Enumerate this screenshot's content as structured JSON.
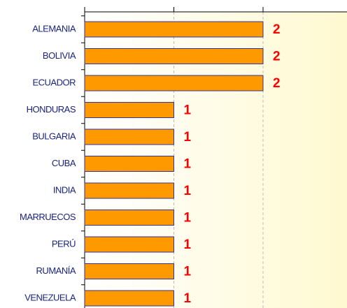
{
  "chart_data": {
    "type": "bar",
    "orientation": "horizontal",
    "categories": [
      "ALEMANIA",
      "BOLIVIA",
      "ECUADOR",
      "HONDURAS",
      "BULGARIA",
      "CUBA",
      "INDIA",
      "MARRUECOS",
      "PERÚ",
      "RUMANÍA",
      "VENEZUELA"
    ],
    "values": [
      2,
      2,
      2,
      1,
      1,
      1,
      1,
      1,
      1,
      1,
      1
    ],
    "color": "#ff9900",
    "xlim": [
      0,
      3
    ],
    "xticks": [
      0,
      1,
      2,
      3
    ],
    "grid": true
  }
}
